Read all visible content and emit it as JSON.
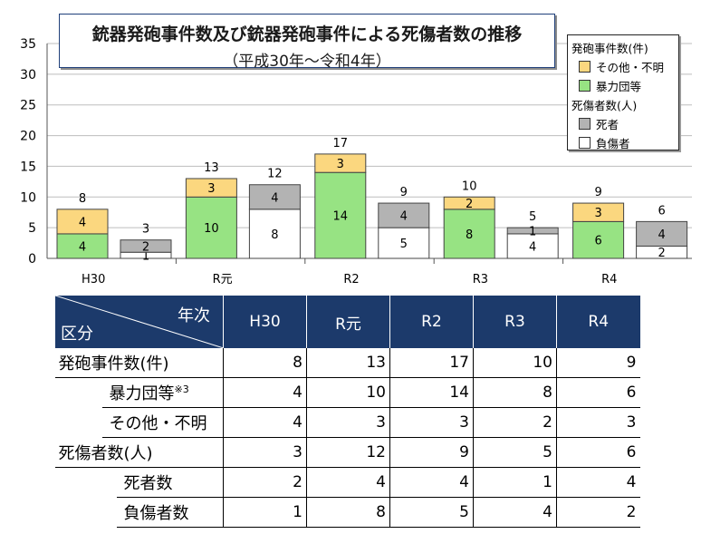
{
  "chart_data": {
    "type": "bar",
    "title": "銃器発砲事件数及び銃器発砲事件による死傷者数の推移",
    "subtitle": "（平成30年～令和4年）",
    "categories": [
      "H30",
      "R元",
      "R2",
      "R3",
      "R4"
    ],
    "ylim": [
      0,
      35
    ],
    "yticks": [
      "0",
      "5",
      "10",
      "15",
      "20",
      "25",
      "30",
      "35"
    ],
    "grid": true,
    "legend_position": "top-right",
    "groups": [
      {
        "name": "発砲事件数(件)",
        "series": [
          {
            "name": "暴力団等",
            "color": "#97e383",
            "values": [
              4,
              10,
              14,
              8,
              6
            ]
          },
          {
            "name": "その他・不明",
            "color": "#fbd77f",
            "values": [
              4,
              3,
              3,
              2,
              3
            ]
          }
        ],
        "totals": [
          8,
          13,
          17,
          10,
          9
        ]
      },
      {
        "name": "死傷者数(人)",
        "series": [
          {
            "name": "負傷者",
            "color": "#ffffff",
            "values": [
              1,
              8,
              5,
              4,
              2
            ]
          },
          {
            "name": "死者",
            "color": "#b3b3b3",
            "values": [
              2,
              4,
              4,
              1,
              4
            ]
          }
        ],
        "totals": [
          3,
          12,
          9,
          5,
          6
        ]
      }
    ]
  },
  "legend": {
    "incidents_header": "発砲事件数(件)",
    "other": "その他・不明",
    "gang": "暴力団等",
    "casualties_header": "死傷者数(人)",
    "dead": "死者",
    "injured": "負傷者"
  },
  "table": {
    "header_year": "年次",
    "header_category": "区分",
    "columns": [
      "H30",
      "R元",
      "R2",
      "R3",
      "R4"
    ],
    "rows": [
      {
        "label": "発砲事件数(件)",
        "indent": 0,
        "values": [
          "8",
          "13",
          "17",
          "10",
          "9"
        ]
      },
      {
        "label": "暴力団等",
        "note": "※3",
        "indent": 1,
        "values": [
          "4",
          "10",
          "14",
          "8",
          "6"
        ]
      },
      {
        "label": "その他・不明",
        "indent": 1,
        "values": [
          "4",
          "3",
          "3",
          "2",
          "3"
        ]
      },
      {
        "label": "死傷者数(人)",
        "indent": 0,
        "values": [
          "3",
          "12",
          "9",
          "5",
          "6"
        ]
      },
      {
        "label": "死者数",
        "indent": 2,
        "values": [
          "2",
          "4",
          "4",
          "1",
          "4"
        ]
      },
      {
        "label": "負傷者数",
        "indent": 2,
        "values": [
          "1",
          "8",
          "5",
          "4",
          "2"
        ]
      }
    ]
  }
}
